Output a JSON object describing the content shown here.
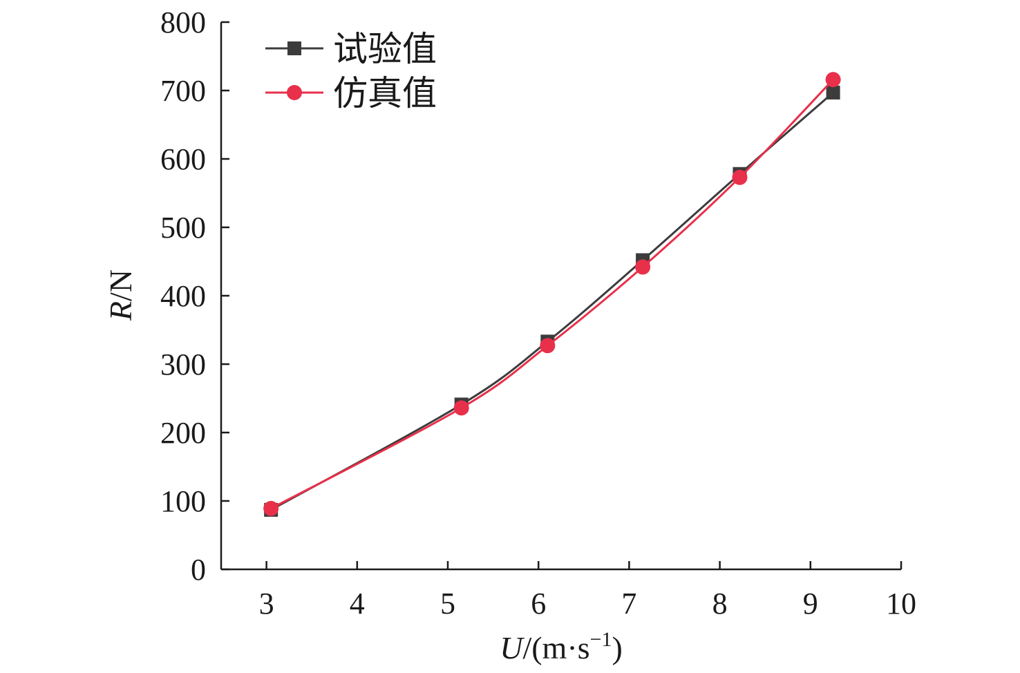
{
  "chart_data": {
    "type": "line",
    "xlabel": {
      "var": "U",
      "rest": "/(m·s",
      "sup": "−1",
      "close": ")"
    },
    "ylabel": {
      "var": "R",
      "rest": "/N"
    },
    "xlim": [
      2.5,
      10
    ],
    "ylim": [
      0,
      800
    ],
    "x_ticks": [
      3,
      4,
      5,
      6,
      7,
      8,
      9,
      10
    ],
    "y_ticks": [
      0,
      100,
      200,
      300,
      400,
      500,
      600,
      700,
      800
    ],
    "legend_position": "top-left",
    "grid": false,
    "series": [
      {
        "name": "试验值",
        "color": "#3c3c3c",
        "marker": "square",
        "x": [
          3.05,
          5.15,
          6.1,
          7.15,
          8.22,
          9.25
        ],
        "values": [
          87,
          241,
          333,
          452,
          578,
          697
        ]
      },
      {
        "name": "仿真值",
        "color": "#e8304b",
        "marker": "circle",
        "x": [
          3.05,
          5.15,
          6.1,
          7.15,
          8.22,
          9.25
        ],
        "values": [
          89,
          236,
          327,
          442,
          573,
          716
        ]
      }
    ]
  }
}
